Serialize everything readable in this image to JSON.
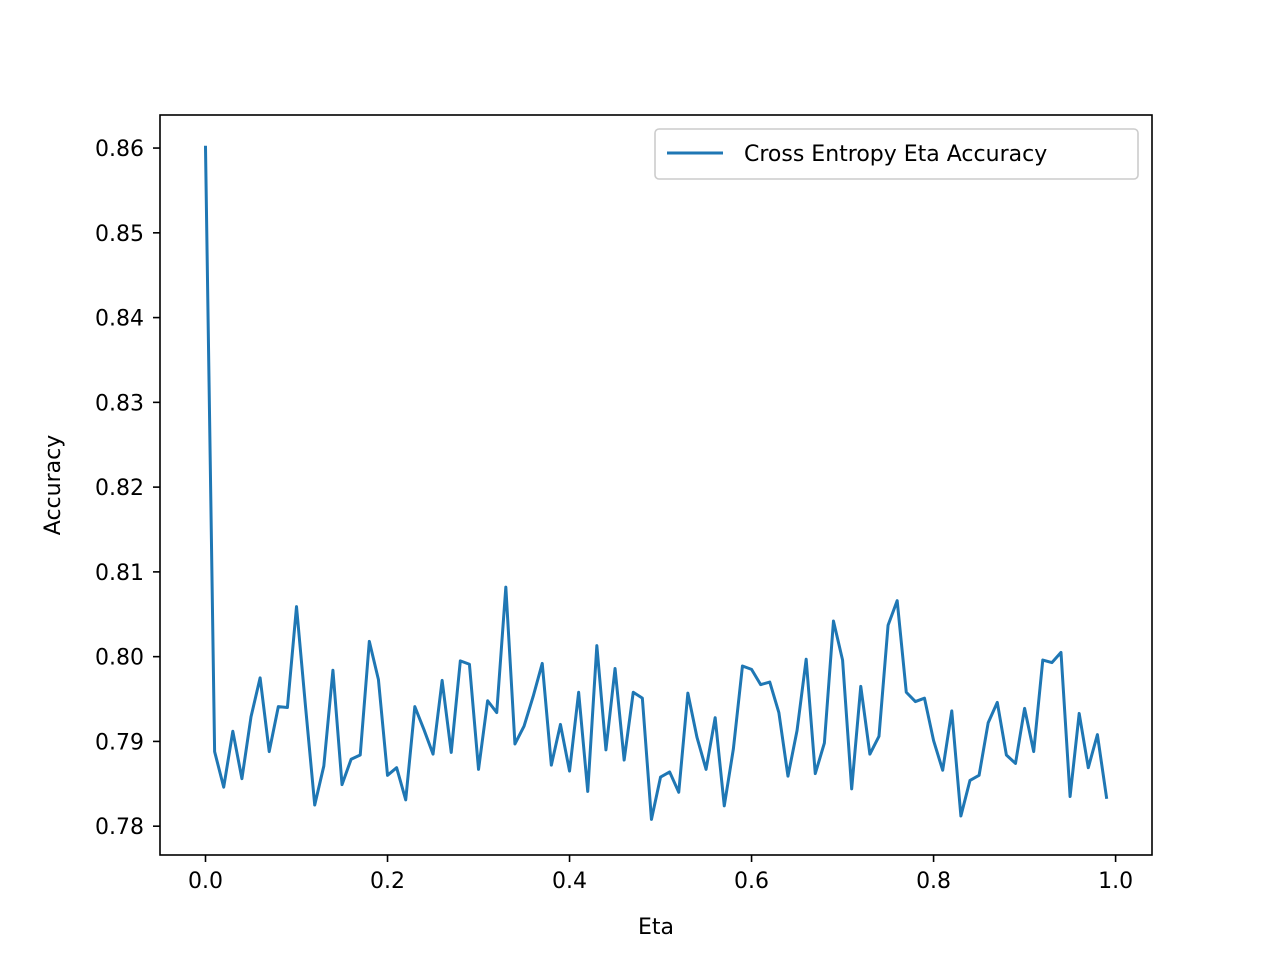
{
  "chart_data": {
    "type": "line",
    "xlabel": "Eta",
    "ylabel": "Accuracy",
    "xlim": [
      -0.05,
      1.04
    ],
    "ylim": [
      0.7766,
      0.8639
    ],
    "xticks": [
      0.0,
      0.2,
      0.4,
      0.6,
      0.8,
      1.0
    ],
    "xtick_labels": [
      "0.0",
      "0.2",
      "0.4",
      "0.6",
      "0.8",
      "1.0"
    ],
    "yticks": [
      0.78,
      0.79,
      0.8,
      0.81,
      0.82,
      0.83,
      0.84,
      0.85,
      0.86
    ],
    "ytick_labels": [
      "0.78",
      "0.79",
      "0.80",
      "0.81",
      "0.82",
      "0.83",
      "0.84",
      "0.85",
      "0.86"
    ],
    "legend_position": "top-right",
    "grid": false,
    "series": [
      {
        "name": "Cross Entropy Eta Accuracy",
        "color": "#1f77b4",
        "x": [
          0.0,
          0.01,
          0.02,
          0.03,
          0.04,
          0.05,
          0.06,
          0.07,
          0.08,
          0.09,
          0.1,
          0.11,
          0.12,
          0.13,
          0.14,
          0.15,
          0.16,
          0.17,
          0.18,
          0.19,
          0.2,
          0.21,
          0.22,
          0.23,
          0.24,
          0.25,
          0.26,
          0.27,
          0.28,
          0.29,
          0.3,
          0.31,
          0.32,
          0.33,
          0.34,
          0.35,
          0.36,
          0.37,
          0.38,
          0.39,
          0.4,
          0.41,
          0.42,
          0.43,
          0.44,
          0.45,
          0.46,
          0.47,
          0.48,
          0.49,
          0.5,
          0.51,
          0.52,
          0.53,
          0.54,
          0.55,
          0.56,
          0.57,
          0.58,
          0.59,
          0.6,
          0.61,
          0.62,
          0.63,
          0.64,
          0.65,
          0.66,
          0.67,
          0.68,
          0.69,
          0.7,
          0.71,
          0.72,
          0.73,
          0.74,
          0.75,
          0.76,
          0.77,
          0.78,
          0.79,
          0.8,
          0.81,
          0.82,
          0.83,
          0.84,
          0.85,
          0.86,
          0.87,
          0.88,
          0.89,
          0.9,
          0.91,
          0.92,
          0.93,
          0.94,
          0.95,
          0.96,
          0.97,
          0.98,
          0.99
        ],
        "values": [
          0.8601,
          0.7888,
          0.7846,
          0.7912,
          0.7856,
          0.7929,
          0.7975,
          0.7888,
          0.7941,
          0.794,
          0.8059,
          0.794,
          0.7825,
          0.7871,
          0.7984,
          0.7849,
          0.7879,
          0.7884,
          0.8018,
          0.7973,
          0.786,
          0.7869,
          0.7831,
          0.7941,
          0.7914,
          0.7885,
          0.7972,
          0.7887,
          0.7995,
          0.7991,
          0.7867,
          0.7948,
          0.7934,
          0.8082,
          0.7897,
          0.7918,
          0.7953,
          0.7992,
          0.7872,
          0.792,
          0.7865,
          0.7958,
          0.7841,
          0.8013,
          0.789,
          0.7986,
          0.7878,
          0.7958,
          0.7951,
          0.7808,
          0.7858,
          0.7864,
          0.784,
          0.7957,
          0.7905,
          0.7867,
          0.7928,
          0.7824,
          0.7891,
          0.7989,
          0.7985,
          0.7967,
          0.797,
          0.7934,
          0.7859,
          0.7913,
          0.7997,
          0.7862,
          0.7898,
          0.8042,
          0.7996,
          0.7844,
          0.7965,
          0.7885,
          0.7906,
          0.8037,
          0.8066,
          0.7958,
          0.7947,
          0.7951,
          0.7901,
          0.7866,
          0.7936,
          0.7812,
          0.7854,
          0.786,
          0.7922,
          0.7946,
          0.7884,
          0.7874,
          0.7939,
          0.7888,
          0.7996,
          0.7993,
          0.8005,
          0.7835,
          0.7933,
          0.7869,
          0.7908,
          0.7834
        ]
      }
    ]
  }
}
